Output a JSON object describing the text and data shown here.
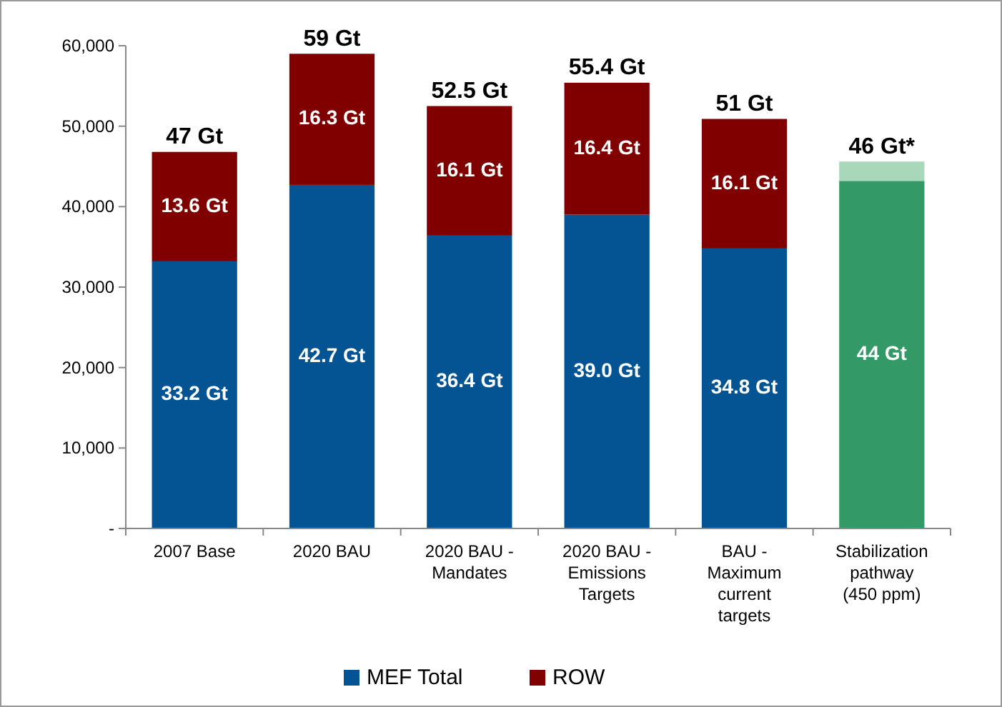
{
  "chart_data": {
    "type": "bar",
    "stacked": true,
    "categories": [
      "2007 Base",
      "2020 BAU",
      "2020 BAU - Mandates",
      "2020 BAU - Emissions Targets",
      "BAU - Maximum current targets",
      "Stabilization pathway (450 ppm)"
    ],
    "series": [
      {
        "name": "MEF Total",
        "color": "#045494",
        "values": [
          33200,
          42700,
          36400,
          39000,
          34800,
          null
        ]
      },
      {
        "name": "ROW",
        "color": "#800000",
        "values": [
          13600,
          16300,
          16100,
          16400,
          16100,
          null
        ]
      },
      {
        "color": "#339966",
        "values": [
          null,
          null,
          null,
          null,
          null,
          43200
        ]
      },
      {
        "color": "#a8d8b9",
        "values": [
          null,
          null,
          null,
          null,
          null,
          2400
        ]
      }
    ],
    "annotations": [
      "33.2 Gt",
      "42.7 Gt",
      "36.4 Gt",
      "39.0 Gt",
      "34.8 Gt",
      "13.6 Gt",
      "16.3 Gt",
      "16.1 Gt",
      "16.4 Gt",
      "16.1 Gt",
      "44 Gt",
      {
        "text": "47 Gt",
        "x": "2007 Base",
        "y": 46800
      },
      {
        "text": "59 Gt",
        "x": "2020 BAU",
        "y": 59000
      },
      {
        "text": "52.5 Gt",
        "x": "2020 BAU - Mandates",
        "y": 52500
      },
      {
        "text": "55.4 Gt",
        "x": "2020 BAU - Emissions Targets",
        "y": 55400
      },
      {
        "text": "51 Gt",
        "x": "BAU - Maximum current targets",
        "y": 50900
      },
      {
        "text": "46 Gt*",
        "x": "Stabilization pathway (450 ppm)",
        "y": 45600
      }
    ],
    "ylim": [
      0,
      60000
    ],
    "yticks": [
      {
        "value": 0,
        "label": "-"
      },
      {
        "value": 10000,
        "label": "10,000"
      },
      {
        "value": 20000,
        "label": "20,000"
      },
      {
        "value": 30000,
        "label": "30,000"
      },
      {
        "value": 40000,
        "label": "40,000"
      },
      {
        "value": 50000,
        "label": "50,000"
      },
      {
        "value": 60000,
        "label": "60,000"
      }
    ],
    "legend": "bottom"
  }
}
